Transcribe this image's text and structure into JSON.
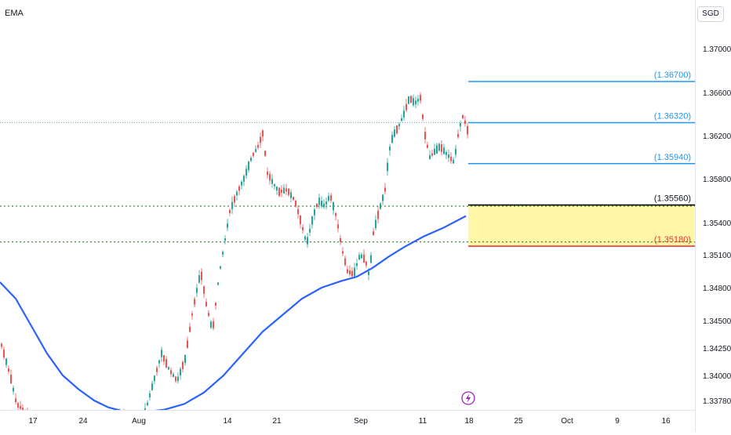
{
  "indicator": {
    "label": "EMA"
  },
  "currency": {
    "label": "SGD"
  },
  "chart_data": {
    "type": "candlestick",
    "y_ticks": [
      "1.37000",
      "1.36600",
      "1.36200",
      "1.35800",
      "1.35400",
      "1.35100",
      "1.34800",
      "1.34500",
      "1.34250",
      "1.34000",
      "1.33780"
    ],
    "x_ticks": [
      "17",
      "24",
      "Aug",
      "14",
      "21",
      "Sep",
      "11",
      "18",
      "25",
      "Oct",
      "9",
      "16"
    ],
    "levels": [
      {
        "label": "(1.36700)",
        "value": 1.367,
        "color": "#2196f3"
      },
      {
        "label": "(1.36320)",
        "value": 1.3632,
        "color": "#2196f3"
      },
      {
        "label": "(1.35940)",
        "value": 1.3594,
        "color": "#2196f3"
      },
      {
        "label": "(1.35560)",
        "value": 1.3556,
        "color": "#000000"
      },
      {
        "label": "(1.35180)",
        "value": 1.3518,
        "color": "#e53935"
      }
    ],
    "zone": {
      "top": 1.3556,
      "bottom": 1.3518,
      "color": "#fff59d"
    },
    "dotted_levels": [
      1.3555,
      1.3522
    ],
    "current_price_level": 1.3632,
    "ema_color": "#2962ff",
    "up_color": "#26a69a",
    "down_color": "#ef5350"
  }
}
